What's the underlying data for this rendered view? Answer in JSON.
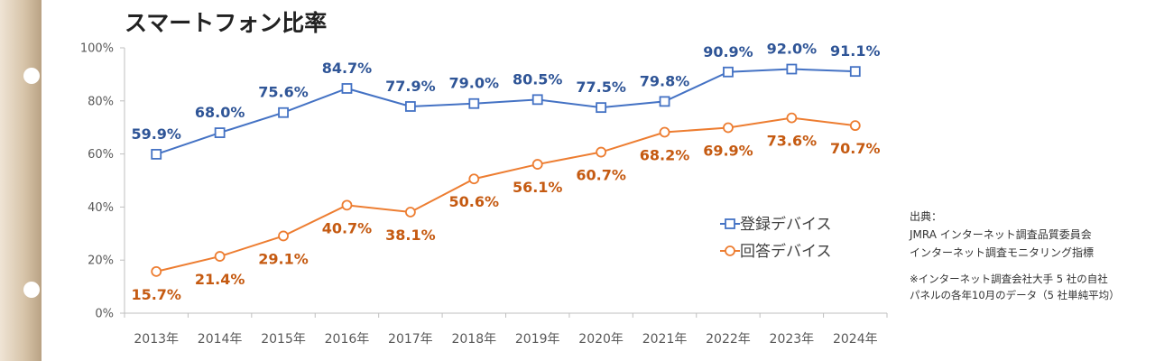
{
  "chart_data": {
    "type": "line",
    "title": "スマートフォン比率",
    "xlabel": "",
    "ylabel": "",
    "categories": [
      "2013年",
      "2014年",
      "2015年",
      "2016年",
      "2017年",
      "2018年",
      "2019年",
      "2020年",
      "2021年",
      "2022年",
      "2023年",
      "2024年"
    ],
    "y_ticks": [
      "0%",
      "20%",
      "40%",
      "60%",
      "80%",
      "100%"
    ],
    "ylim": [
      0,
      100
    ],
    "grid": false,
    "legend_position": "right",
    "series": [
      {
        "name": "登録デバイス",
        "color": "#4472c4",
        "label_color": "#2f5597",
        "marker": "square",
        "values": [
          59.9,
          68.0,
          75.6,
          84.7,
          77.9,
          79.0,
          80.5,
          77.5,
          79.8,
          90.9,
          92.0,
          91.1
        ],
        "labels": [
          "59.9%",
          "68.0%",
          "75.6%",
          "84.7%",
          "77.9%",
          "79.0%",
          "80.5%",
          "77.5%",
          "79.8%",
          "90.9%",
          "92.0%",
          "91.1%"
        ]
      },
      {
        "name": "回答デバイス",
        "color": "#ed7d31",
        "label_color": "#c55a11",
        "marker": "circle",
        "values": [
          15.7,
          21.4,
          29.1,
          40.7,
          38.1,
          50.6,
          56.1,
          60.7,
          68.2,
          69.9,
          73.6,
          70.7
        ],
        "labels": [
          "15.7%",
          "21.4%",
          "29.1%",
          "40.7%",
          "38.1%",
          "50.6%",
          "56.1%",
          "60.7%",
          "68.2%",
          "69.9%",
          "73.6%",
          "70.7%"
        ]
      }
    ]
  },
  "source": {
    "heading": "出典：",
    "line1": "JMRA インターネット調査品質委員会",
    "line2": "インターネット調査モニタリング指標",
    "note1": "※インターネット調査会社大手 5 社の自社",
    "note2": "パネルの各年10月のデータ（5 社単純平均）"
  }
}
